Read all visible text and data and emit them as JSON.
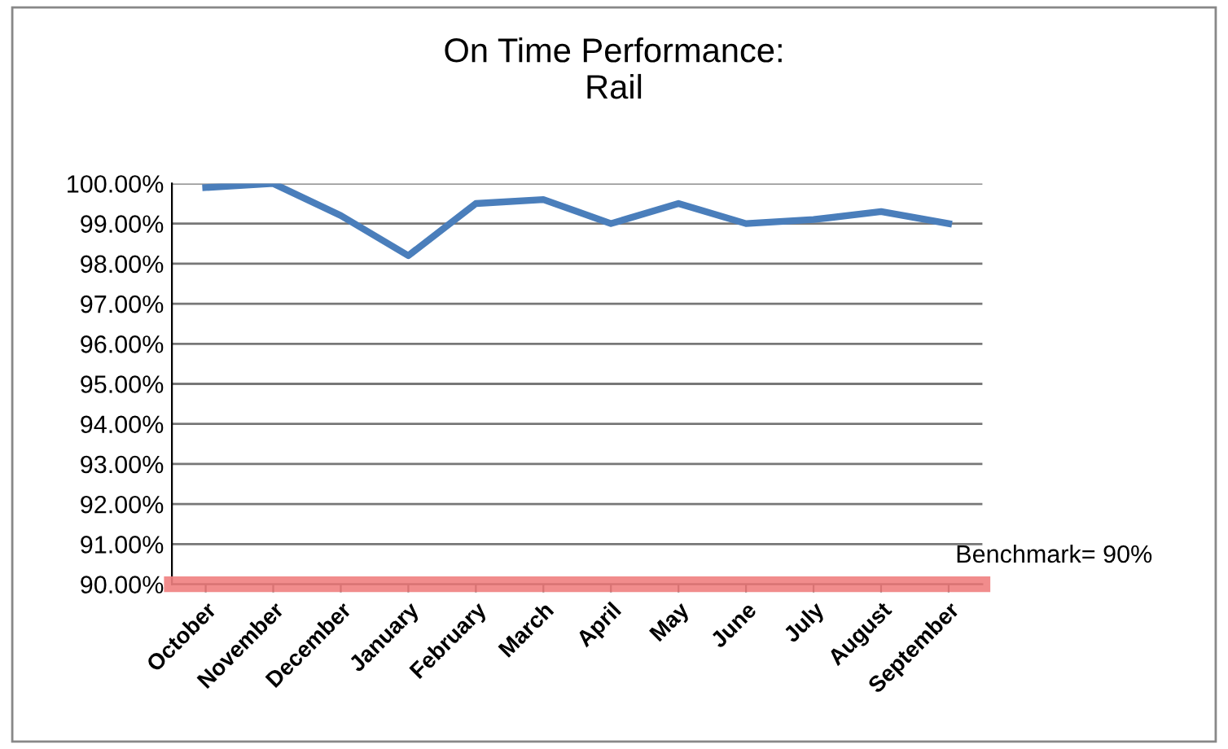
{
  "chart_data": {
    "type": "line",
    "title": "On Time Performance:\nRail",
    "categories": [
      "October",
      "November",
      "December",
      "January",
      "February",
      "March",
      "April",
      "May",
      "June",
      "July",
      "August",
      "September"
    ],
    "series": [
      {
        "color": "#4a7ebb",
        "values": [
          99.9,
          100.0,
          99.2,
          98.2,
          99.5,
          99.6,
          99.0,
          99.5,
          99.0,
          99.1,
          99.3,
          99.0
        ]
      }
    ],
    "ylim": [
      90,
      100
    ],
    "yticks": [
      {
        "value": 90,
        "label": "90.00%"
      },
      {
        "value": 91,
        "label": "91.00%"
      },
      {
        "value": 92,
        "label": "92.00%"
      },
      {
        "value": 93,
        "label": "93.00%"
      },
      {
        "value": 94,
        "label": "94.00%"
      },
      {
        "value": 95,
        "label": "95.00%"
      },
      {
        "value": 96,
        "label": "96.00%"
      },
      {
        "value": 97,
        "label": "97.00%"
      },
      {
        "value": 98,
        "label": "98.00%"
      },
      {
        "value": 99,
        "label": "99.00%"
      },
      {
        "value": 100,
        "label": "100.00%"
      }
    ],
    "ref_lines": [
      {
        "axis": "y",
        "value": 90,
        "label": "Benchmark= 90%",
        "color": "#f08080"
      }
    ],
    "grid": "y",
    "legend": false,
    "marker": "none",
    "line_style": "solid"
  }
}
